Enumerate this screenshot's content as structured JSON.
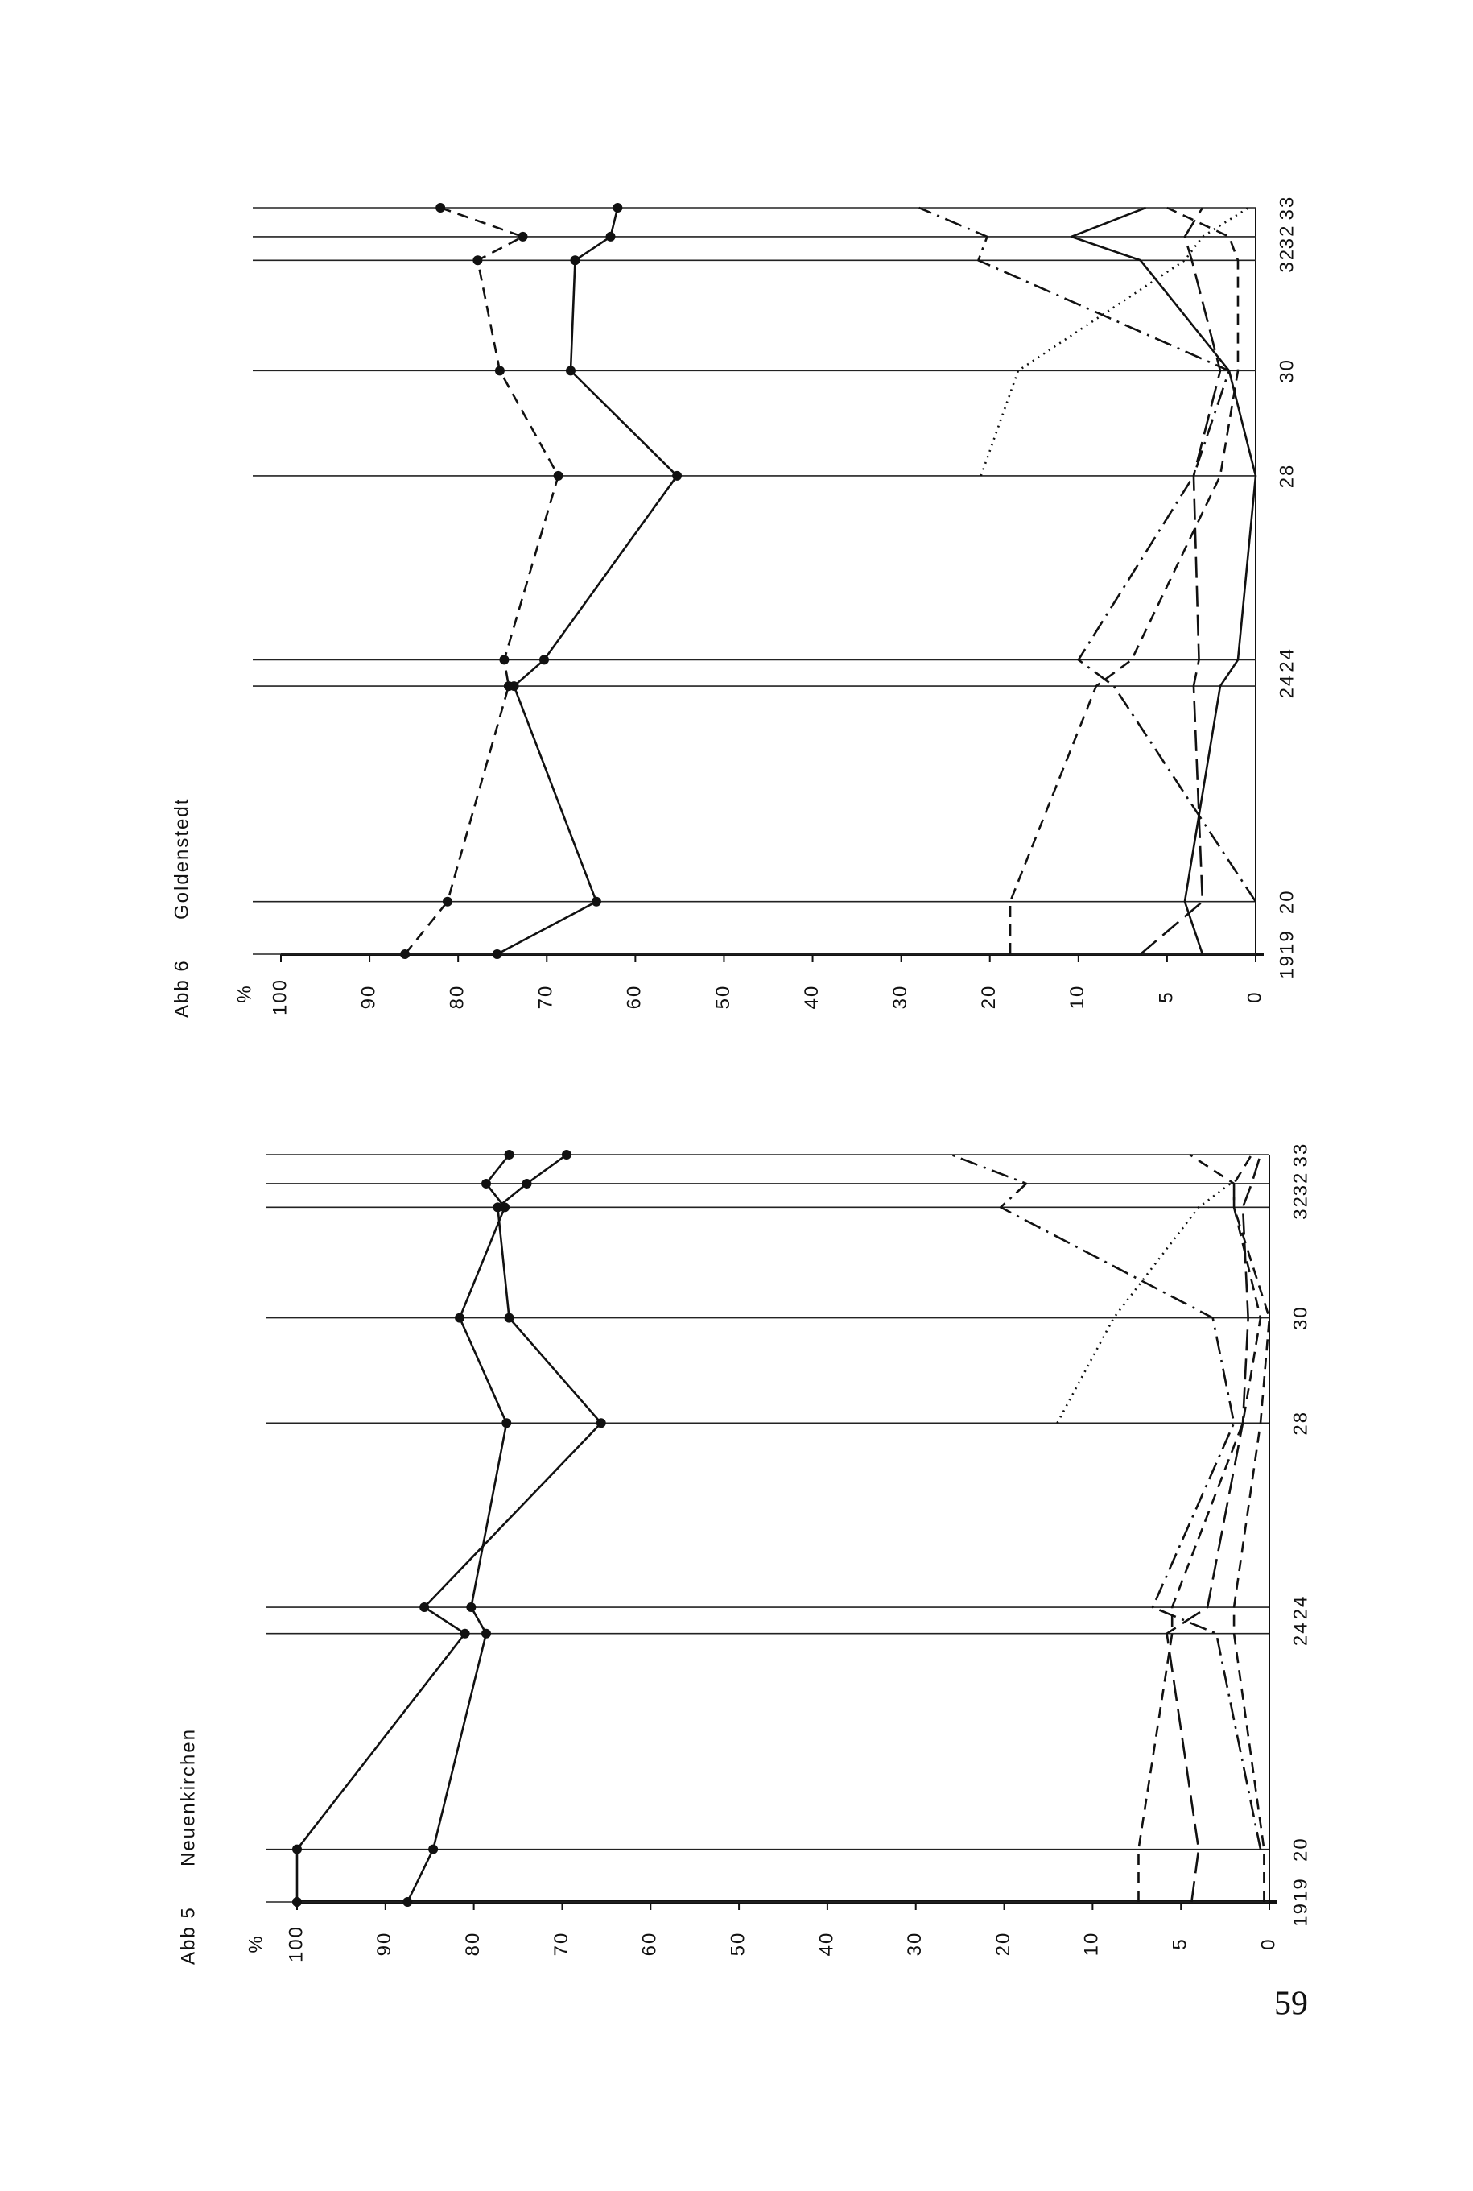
{
  "page": {
    "number": "59"
  },
  "chart_data": [
    {
      "type": "line",
      "figure": "Abb 5",
      "title": "Neuenkirchen",
      "y_unit": "%",
      "x": [
        1919,
        1920,
        1924.1,
        1924.6,
        1928.1,
        1930.1,
        1932.2,
        1932.65,
        1933.2
      ],
      "xlim": [
        1919,
        1933.2
      ],
      "xticks": [
        {
          "value": 1919,
          "label": "1919"
        },
        {
          "value": 1920,
          "label": "20"
        },
        {
          "value": 1924.1,
          "label": "24"
        },
        {
          "value": 1924.6,
          "label": "24"
        },
        {
          "value": 1928.1,
          "label": "28"
        },
        {
          "value": 1930.1,
          "label": "30"
        },
        {
          "value": 1932.2,
          "label": "32"
        },
        {
          "value": 1932.65,
          "label": "32"
        },
        {
          "value": 1933.2,
          "label": "33"
        }
      ],
      "ylim": [
        0,
        100
      ],
      "yticks": [
        0,
        5,
        10,
        20,
        30,
        40,
        50,
        60,
        70,
        80,
        90,
        100
      ],
      "grid": true,
      "series": [
        {
          "color": "#111111",
          "style": "solid",
          "markers": true,
          "values": [
            100,
            100,
            81,
            85.6,
            65.6,
            76,
            77.3,
            74,
            69.5
          ]
        },
        {
          "color": "#111111",
          "style": "solid",
          "markers": true,
          "values": [
            87.5,
            84.6,
            78.6,
            80.3,
            76.3,
            81.6,
            76.5,
            78.6,
            76
          ]
        },
        {
          "color": "#111111",
          "style": "dashed",
          "markers": false,
          "values": [
            7.4,
            7.4,
            5.5,
            5.5,
            1.5,
            0.5,
            2,
            2,
            1
          ]
        },
        {
          "color": "#111111",
          "style": "dashdot",
          "markers": false,
          "values": [
            null,
            0.5,
            3,
            6.6,
            2,
            3.2,
            20.4,
            17.5,
            26
          ]
        },
        {
          "color": "#111111",
          "style": "longdash",
          "markers": false,
          "values": [
            4.4,
            4,
            5.8,
            3.5,
            1.5,
            1.2,
            1.5,
            1,
            0.5
          ]
        },
        {
          "color": "#111111",
          "style": "dotted",
          "markers": false,
          "values": [
            null,
            null,
            null,
            null,
            14,
            8.8,
            4,
            2.2,
            null
          ]
        },
        {
          "color": "#111111",
          "style": "dashed",
          "markers": false,
          "values": [
            0.3,
            0.3,
            2,
            2,
            0.5,
            0,
            2,
            2,
            4.5
          ]
        }
      ]
    },
    {
      "type": "line",
      "figure": "Abb 6",
      "title": "Goldenstedt",
      "y_unit": "%",
      "x": [
        1919,
        1920,
        1924.1,
        1924.6,
        1928.1,
        1930.1,
        1932.2,
        1932.65,
        1933.2
      ],
      "xlim": [
        1919,
        1933.2
      ],
      "xticks": [
        {
          "value": 1919,
          "label": "1919"
        },
        {
          "value": 1920,
          "label": "20"
        },
        {
          "value": 1924.1,
          "label": "24"
        },
        {
          "value": 1924.6,
          "label": "24"
        },
        {
          "value": 1928.1,
          "label": "28"
        },
        {
          "value": 1930.1,
          "label": "30"
        },
        {
          "value": 1932.2,
          "label": "32"
        },
        {
          "value": 1932.65,
          "label": "32"
        },
        {
          "value": 1933.2,
          "label": "33"
        }
      ],
      "ylim": [
        0,
        100
      ],
      "yticks": [
        0,
        5,
        10,
        20,
        30,
        40,
        50,
        60,
        70,
        80,
        90,
        100
      ],
      "grid": true,
      "series": [
        {
          "color": "#111111",
          "style": "solid",
          "markers": true,
          "values": [
            75.6,
            64.4,
            73.7,
            70.3,
            55.3,
            67.3,
            66.8,
            62.8,
            62
          ]
        },
        {
          "color": "#111111",
          "style": "dashed",
          "markers": true,
          "values": [
            86,
            81.2,
            74.3,
            74.8,
            68.7,
            75.3,
            77.8,
            72.7,
            82
          ]
        },
        {
          "color": "#111111",
          "style": "dashed",
          "markers": false,
          "values": [
            17.7,
            17.7,
            9,
            7,
            2,
            1,
            1,
            1.5,
            5
          ]
        },
        {
          "color": "#111111",
          "style": "dashdot",
          "markers": false,
          "values": [
            null,
            0,
            8,
            10,
            3.5,
            1.5,
            21.3,
            20.3,
            28
          ]
        },
        {
          "color": "#111111",
          "style": "solid",
          "markers": false,
          "values": [
            3,
            4,
            2,
            1,
            0,
            1.5,
            6.5,
            10.8,
            6.2
          ]
        },
        {
          "color": "#111111",
          "style": "dotted",
          "markers": false,
          "values": [
            null,
            null,
            null,
            null,
            21,
            16.8,
            4,
            3,
            0.4
          ]
        },
        {
          "color": "#111111",
          "style": "longdash",
          "markers": false,
          "values": [
            6.5,
            3,
            3.5,
            3.2,
            3.5,
            2,
            3.6,
            4,
            3
          ]
        }
      ]
    }
  ]
}
